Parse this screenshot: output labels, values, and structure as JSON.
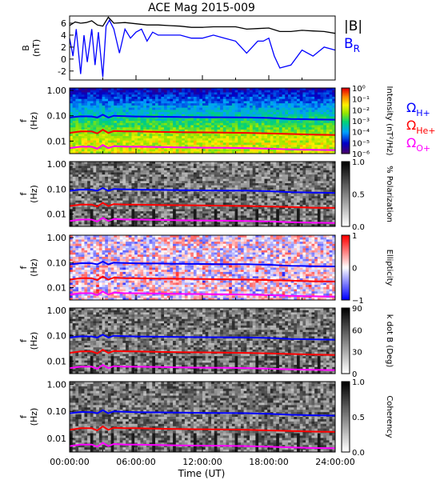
{
  "title": "ACE Mag 2015-009",
  "chart_data": {
    "type": "line",
    "xlabel": "Time (UT)",
    "x_ticks": [
      "00:00:00",
      "06:00:00",
      "12:00:00",
      "18:00:00",
      "24:00:00"
    ],
    "xlim": [
      0,
      24
    ],
    "panels": [
      {
        "kind": "line",
        "ylabel": [
          "B",
          "(nT)"
        ],
        "ylim": [
          -3.5,
          7.2
        ],
        "y_ticks": [
          "6",
          "4",
          "2",
          "0",
          "-2"
        ],
        "y_tick_values": [
          6,
          4,
          2,
          0,
          -2
        ],
        "legend": [
          {
            "label": "|B|",
            "color": "#000000"
          },
          {
            "label": "B",
            "sub": "R",
            "color": "#0000ff"
          }
        ],
        "series": [
          {
            "name": "|B|",
            "color": "#000000",
            "x": [
              0,
              0.5,
              1,
              1.5,
              2,
              2.5,
              3,
              3.5,
              4,
              5,
              6,
              7,
              8,
              9,
              10,
              11,
              12,
              13,
              14,
              15,
              16,
              17,
              18,
              19,
              20,
              21,
              22,
              23,
              24
            ],
            "y": [
              5.6,
              6.2,
              6.0,
              6.1,
              6.4,
              5.7,
              5.5,
              7.0,
              6.0,
              6.1,
              5.9,
              5.7,
              5.7,
              5.6,
              5.5,
              5.3,
              5.3,
              5.4,
              5.4,
              5.4,
              5.0,
              5.1,
              5.2,
              4.6,
              4.6,
              4.8,
              4.7,
              4.6,
              4.3
            ]
          },
          {
            "name": "B_R",
            "color": "#0000ff",
            "x": [
              0,
              0.3,
              0.6,
              1,
              1.3,
              1.6,
              2,
              2.3,
              2.6,
              3,
              3.3,
              3.6,
              4,
              4.5,
              5,
              5.5,
              6,
              6.5,
              7,
              7.5,
              8,
              9,
              10,
              11,
              12,
              13,
              14,
              15,
              16,
              17,
              17.5,
              18,
              18.5,
              19,
              20,
              21,
              22,
              23,
              24
            ],
            "y": [
              3.5,
              0.5,
              5.0,
              -2.5,
              4.0,
              -0.5,
              5.0,
              -1.0,
              4.5,
              -3.0,
              5.5,
              6.5,
              5.0,
              1.0,
              5.0,
              3.5,
              4.5,
              5.0,
              3.0,
              4.5,
              4.0,
              4.0,
              4.0,
              3.5,
              3.5,
              4.0,
              3.5,
              3.0,
              1.0,
              3.0,
              3.0,
              3.5,
              0.5,
              -1.5,
              -1.0,
              1.5,
              0.5,
              2.0,
              1.5
            ]
          }
        ]
      },
      {
        "kind": "spectrogram",
        "colormap": "rainbow",
        "ylabel": [
          "f",
          "(Hz)"
        ],
        "y_ticks": [
          "1.00",
          "0.10",
          "0.01"
        ],
        "colorbar_label": "Intensity (nT²/Hz)",
        "colorbar_ticks": [
          "10⁰",
          "10⁻¹",
          "10⁻²",
          "10⁻³",
          "10⁻⁴",
          "10⁻⁵",
          "10⁻⁶"
        ],
        "legend": [
          {
            "label": "Ω",
            "sub": "H+",
            "color": "#0000ff"
          },
          {
            "label": "Ω",
            "sub": "He+",
            "color": "#ff0000"
          },
          {
            "label": "Ω",
            "sub": "O+",
            "color": "#ff00ff"
          }
        ]
      },
      {
        "kind": "spectrogram",
        "colormap": "gray",
        "ylabel": [
          "f",
          "(Hz)"
        ],
        "y_ticks": [
          "1.00",
          "0.10",
          "0.01"
        ],
        "colorbar_label": "% Polarization",
        "colorbar_ticks": [
          "1.0",
          "0.5",
          "0.0"
        ]
      },
      {
        "kind": "spectrogram",
        "colormap": "bwr",
        "ylabel": [
          "f",
          "(Hz)"
        ],
        "y_ticks": [
          "1.00",
          "0.10",
          "0.01"
        ],
        "colorbar_label": "Ellipticity",
        "colorbar_ticks": [
          "1",
          "0",
          "−1"
        ]
      },
      {
        "kind": "spectrogram",
        "colormap": "gray",
        "ylabel": [
          "f",
          "(Hz)"
        ],
        "y_ticks": [
          "1.00",
          "0.10",
          "0.01"
        ],
        "colorbar_label": "k dot B (Deg)",
        "colorbar_ticks": [
          "90",
          "60",
          "30",
          "0"
        ]
      },
      {
        "kind": "spectrogram",
        "colormap": "gray",
        "ylabel": [
          "f",
          "(Hz)"
        ],
        "y_ticks": [
          "1.00",
          "0.10",
          "0.01"
        ],
        "colorbar_label": "Coherency",
        "colorbar_ticks": [
          "1.0",
          "0.5",
          "0.0"
        ]
      }
    ],
    "gyrofrequency_curves": [
      {
        "name": "H+",
        "color": "#0000ff",
        "x": [
          0,
          1,
          2,
          2.5,
          3,
          3.5,
          4,
          5,
          6,
          8,
          10,
          12,
          14,
          16,
          18,
          20,
          22,
          24
        ],
        "f": [
          0.085,
          0.095,
          0.094,
          0.085,
          0.11,
          0.085,
          0.1,
          0.096,
          0.094,
          0.092,
          0.09,
          0.088,
          0.087,
          0.086,
          0.082,
          0.075,
          0.072,
          0.07
        ]
      },
      {
        "name": "He+",
        "color": "#ff0000",
        "x": [
          0,
          1,
          2,
          2.5,
          3,
          3.5,
          4,
          5,
          6,
          8,
          10,
          12,
          14,
          16,
          18,
          20,
          22,
          24
        ],
        "f": [
          0.021,
          0.024,
          0.024,
          0.02,
          0.028,
          0.021,
          0.025,
          0.024,
          0.024,
          0.023,
          0.0225,
          0.022,
          0.0215,
          0.021,
          0.02,
          0.019,
          0.018,
          0.0175
        ]
      },
      {
        "name": "O+",
        "color": "#ff00ff",
        "x": [
          0,
          1,
          2,
          2.5,
          3,
          3.5,
          4,
          5,
          6,
          8,
          10,
          12,
          14,
          16,
          18,
          20,
          22,
          24
        ],
        "f": [
          0.0053,
          0.006,
          0.006,
          0.005,
          0.007,
          0.0053,
          0.0063,
          0.006,
          0.006,
          0.0058,
          0.0056,
          0.0055,
          0.0054,
          0.0053,
          0.005,
          0.0047,
          0.0045,
          0.0044
        ]
      }
    ]
  }
}
